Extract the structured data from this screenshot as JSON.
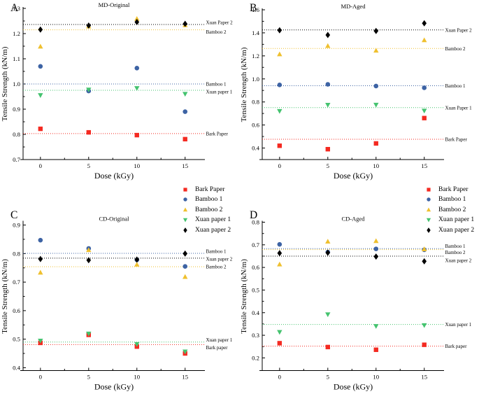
{
  "figure": {
    "background": "#ffffff"
  },
  "legend": {
    "entries": [
      {
        "label": "Bark Paper",
        "marker": "square",
        "color": "#f42a21"
      },
      {
        "label": "Bamboo 1",
        "marker": "circle",
        "color": "#3d63a4"
      },
      {
        "label": "Bamboo 2",
        "marker": "triangle-up",
        "color": "#efc02f"
      },
      {
        "label": "Xuan paper 1",
        "marker": "triangle-down",
        "color": "#45c36f"
      },
      {
        "label": "Xuan paper 2",
        "marker": "diamond",
        "color": "#000000"
      }
    ]
  },
  "chart_data": [
    {
      "panel_label": "A",
      "type": "scatter",
      "title": "MD-Original",
      "xlabel": "Dose (kGy)",
      "ylabel": "Tensile Strength (kN/m)",
      "x": [
        0,
        5,
        10,
        15
      ],
      "xticks": [
        0,
        5,
        10,
        15
      ],
      "xminor": [
        2.5,
        7.5,
        12.5
      ],
      "xlim": [
        -1.8,
        17.05
      ],
      "ylim": [
        0.7,
        1.3
      ],
      "yticks": [
        0.7,
        0.8,
        0.9,
        1.0,
        1.1,
        1.2,
        1.3
      ],
      "grid": false,
      "legend_position": "none",
      "series": [
        {
          "name": "Bark Paper",
          "marker": "square",
          "color": "#f42a21",
          "values": [
            0.822,
            0.808,
            0.797,
            0.781
          ],
          "ref_line": 0.803,
          "ref_label": "Bark Paper",
          "ref_label_dy": 0
        },
        {
          "name": "Bamboo 1",
          "marker": "circle",
          "color": "#3d63a4",
          "values": [
            1.07,
            0.972,
            1.063,
            0.89
          ],
          "ref_line": 1.0,
          "ref_label": "Bamboo 1",
          "ref_label_dy": 0
        },
        {
          "name": "Bamboo 2",
          "marker": "triangle-up",
          "color": "#efc02f",
          "values": [
            1.148,
            1.228,
            1.258,
            1.233
          ],
          "ref_line": 1.215,
          "ref_label": "Bamboo 2",
          "ref_label_dy": 3
        },
        {
          "name": "Xuan paper 1",
          "marker": "triangle-down",
          "color": "#45c36f",
          "values": [
            0.956,
            0.978,
            0.984,
            0.961
          ],
          "ref_line": 0.975,
          "ref_label": "Xuan paper 1",
          "ref_label_dy": 2
        },
        {
          "name": "Xuan Paper 2",
          "marker": "diamond",
          "color": "#000000",
          "values": [
            1.216,
            1.232,
            1.246,
            1.239
          ],
          "ref_line": 1.236,
          "ref_label": "Xuan Paper 2",
          "ref_label_dy": -3
        }
      ]
    },
    {
      "panel_label": "B",
      "type": "scatter",
      "title": "MD-Aged",
      "xlabel": "Dose (kGy)",
      "ylabel": "Tensile Strength (kN/m)",
      "x": [
        0,
        5,
        10,
        15
      ],
      "xticks": [
        0,
        5,
        10,
        15
      ],
      "xminor": [
        2.5,
        7.5,
        12.5
      ],
      "xlim": [
        -1.8,
        17.05
      ],
      "ylim": [
        0.3,
        1.6
      ],
      "yticks": [
        0.4,
        0.6,
        0.8,
        1.0,
        1.2,
        1.4,
        1.6
      ],
      "grid": false,
      "legend_position": "none",
      "series": [
        {
          "name": "Bark Paper",
          "marker": "square",
          "color": "#f42a21",
          "values": [
            0.42,
            0.39,
            0.44,
            0.66
          ],
          "ref_line": 0.476,
          "ref_label": "Bark Paper",
          "ref_label_dy": 0
        },
        {
          "name": "Bamboo 1",
          "marker": "circle",
          "color": "#3d63a4",
          "values": [
            0.948,
            0.953,
            0.938,
            0.923
          ],
          "ref_line": 0.941,
          "ref_label": "Bamboo 1",
          "ref_label_dy": 0
        },
        {
          "name": "Bamboo 2",
          "marker": "triangle-up",
          "color": "#efc02f",
          "values": [
            1.213,
            1.285,
            1.245,
            1.335
          ],
          "ref_line": 1.264,
          "ref_label": "Bamboo 2",
          "ref_label_dy": 0
        },
        {
          "name": "Xuan Paper 1",
          "marker": "triangle-down",
          "color": "#45c36f",
          "values": [
            0.722,
            0.776,
            0.777,
            0.725
          ],
          "ref_line": 0.751,
          "ref_label": "Xuan Paper 1",
          "ref_label_dy": 0
        },
        {
          "name": "Xuan Paper 2",
          "marker": "diamond",
          "color": "#000000",
          "values": [
            1.422,
            1.381,
            1.416,
            1.483
          ],
          "ref_line": 1.425,
          "ref_label": "Xuan Paper 2",
          "ref_label_dy": 0
        }
      ]
    },
    {
      "panel_label": "C",
      "type": "scatter",
      "title": "CD-Original",
      "xlabel": "Dose (kGy)",
      "ylabel": "Tensile Strength (kN/m)",
      "x": [
        0,
        5,
        10,
        15
      ],
      "xticks": [
        0,
        5,
        10,
        15
      ],
      "xminor": [
        2.5,
        7.5,
        12.5
      ],
      "xlim": [
        -1.8,
        17.05
      ],
      "ylim": [
        0.39,
        0.91
      ],
      "yticks": [
        0.4,
        0.5,
        0.6,
        0.7,
        0.8,
        0.9
      ],
      "grid": false,
      "legend_position": "above-right",
      "series": [
        {
          "name": "Bark paper",
          "marker": "square",
          "color": "#f42a21",
          "values": [
            0.487,
            0.515,
            0.474,
            0.45
          ],
          "ref_line": 0.481,
          "ref_label": "Bark paper",
          "ref_label_dy": 4
        },
        {
          "name": "Bamboo 1",
          "marker": "circle",
          "color": "#3d63a4",
          "values": [
            0.847,
            0.818,
            0.778,
            0.755
          ],
          "ref_line": 0.801,
          "ref_label": "Bamboo 1",
          "ref_label_dy": -3
        },
        {
          "name": "Bamboo 2",
          "marker": "triangle-up",
          "color": "#efc02f",
          "values": [
            0.733,
            0.812,
            0.761,
            0.718
          ],
          "ref_line": 0.754,
          "ref_label": "Bamboo 2",
          "ref_label_dy": 0
        },
        {
          "name": "Xuan paper 1",
          "marker": "triangle-down",
          "color": "#45c36f",
          "values": [
            0.495,
            0.52,
            0.483,
            0.457
          ],
          "ref_line": 0.49,
          "ref_label": "Xuan paper 1",
          "ref_label_dy": -3
        },
        {
          "name": "Xuan paper 2",
          "marker": "diamond",
          "color": "#000000",
          "values": [
            0.781,
            0.777,
            0.779,
            0.8
          ],
          "ref_line": 0.784,
          "ref_label": "Xuan paper 2",
          "ref_label_dy": 1
        }
      ]
    },
    {
      "panel_label": "D",
      "type": "scatter",
      "title": "CD-Aged",
      "xlabel": "Dose (kGy)",
      "ylabel": "Tensile Strength (kN/m)",
      "x": [
        0,
        5,
        10,
        15
      ],
      "xticks": [
        0,
        5,
        10,
        15
      ],
      "xminor": [
        2.5,
        7.5,
        12.5
      ],
      "xlim": [
        -1.8,
        17.05
      ],
      "ylim": [
        0.144,
        0.8
      ],
      "yticks": [
        0.2,
        0.3,
        0.4,
        0.5,
        0.6,
        0.7,
        0.8
      ],
      "grid": false,
      "legend_position": "above-right",
      "series": [
        {
          "name": "Bark paper",
          "marker": "square",
          "color": "#f42a21",
          "values": [
            0.265,
            0.248,
            0.236,
            0.258
          ],
          "ref_line": 0.252,
          "ref_label": "Bark paper",
          "ref_label_dy": 0
        },
        {
          "name": "Bamboo 1",
          "marker": "circle",
          "color": "#3d63a4",
          "values": [
            0.702,
            0.668,
            0.682,
            0.678
          ],
          "ref_line": 0.683,
          "ref_label": "Bamboo 1",
          "ref_label_dy": -4
        },
        {
          "name": "Bamboo 2",
          "marker": "triangle-up",
          "color": "#efc02f",
          "values": [
            0.613,
            0.714,
            0.716,
            0.68
          ],
          "ref_line": 0.679,
          "ref_label": "Bamboo 2",
          "ref_label_dy": 4
        },
        {
          "name": "Xuan paper 1",
          "marker": "triangle-down",
          "color": "#45c36f",
          "values": [
            0.315,
            0.393,
            0.341,
            0.345
          ],
          "ref_line": 0.348,
          "ref_label": "Xuan paper 1",
          "ref_label_dy": 0
        },
        {
          "name": "Xuan paper 2",
          "marker": "diamond",
          "color": "#000000",
          "values": [
            0.663,
            0.665,
            0.648,
            0.627
          ],
          "ref_line": 0.65,
          "ref_label": "Xuan paper 2",
          "ref_label_dy": 6
        }
      ]
    }
  ]
}
